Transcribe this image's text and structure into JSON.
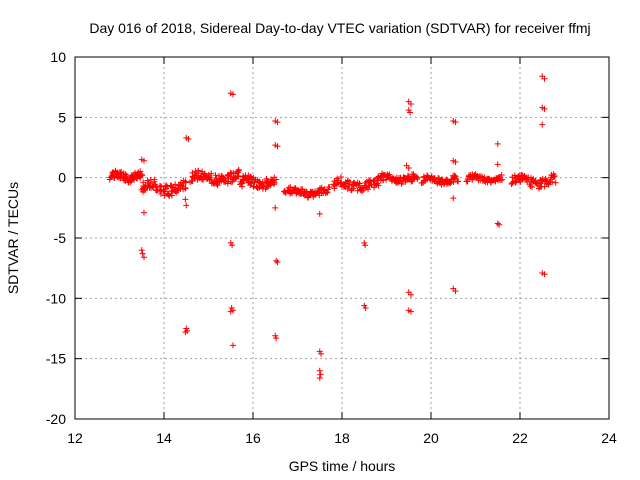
{
  "chart_data": {
    "type": "scatter",
    "title": "Day 016 of 2018, Sidereal Day-to-day VTEC variation (SDTVAR) for receiver ffmj",
    "xlabel": "GPS time / hours",
    "ylabel": "SDTVAR / TECUs",
    "xlim": [
      12,
      24
    ],
    "ylim": [
      -20,
      10
    ],
    "xticks": [
      12,
      14,
      16,
      18,
      20,
      22,
      24
    ],
    "yticks": [
      -20,
      -15,
      -10,
      -5,
      0,
      5,
      10
    ],
    "grid": true,
    "marker": "plus",
    "color": "#ff0000",
    "clusters": [
      {
        "x0": 12.8,
        "x1": 13.5,
        "y": 0.1,
        "spread": 0.45,
        "n": 70
      },
      {
        "x0": 13.5,
        "x1": 14.5,
        "y": -0.8,
        "spread": 0.7,
        "n": 80
      },
      {
        "x0": 14.6,
        "x1": 15.7,
        "y": 0.0,
        "spread": 0.6,
        "n": 90
      },
      {
        "x0": 15.7,
        "x1": 16.5,
        "y": -0.4,
        "spread": 0.6,
        "n": 70
      },
      {
        "x0": 16.7,
        "x1": 17.7,
        "y": -1.2,
        "spread": 0.45,
        "n": 80
      },
      {
        "x0": 17.8,
        "x1": 18.8,
        "y": -0.6,
        "spread": 0.6,
        "n": 70
      },
      {
        "x0": 18.8,
        "x1": 19.7,
        "y": -0.1,
        "spread": 0.45,
        "n": 70
      },
      {
        "x0": 19.8,
        "x1": 20.6,
        "y": -0.2,
        "spread": 0.4,
        "n": 60
      },
      {
        "x0": 20.8,
        "x1": 21.6,
        "y": -0.1,
        "spread": 0.35,
        "n": 60
      },
      {
        "x0": 21.8,
        "x1": 22.8,
        "y": -0.3,
        "spread": 0.55,
        "n": 80
      }
    ],
    "outliers": [
      [
        13.5,
        1.5
      ],
      [
        13.55,
        1.4
      ],
      [
        13.5,
        -6.0
      ],
      [
        13.52,
        -6.3
      ],
      [
        13.55,
        -6.6
      ],
      [
        13.55,
        -2.9
      ],
      [
        13.55,
        -1.0
      ],
      [
        14.5,
        3.3
      ],
      [
        14.55,
        3.2
      ],
      [
        14.5,
        -12.5
      ],
      [
        14.52,
        -12.7
      ],
      [
        14.48,
        -12.8
      ],
      [
        14.5,
        -2.3
      ],
      [
        14.48,
        -1.8
      ],
      [
        15.5,
        7.0
      ],
      [
        15.55,
        6.9
      ],
      [
        15.5,
        -5.4
      ],
      [
        15.53,
        -5.6
      ],
      [
        15.52,
        -10.8
      ],
      [
        15.5,
        -11.1
      ],
      [
        15.55,
        -11.0
      ],
      [
        15.55,
        -13.9
      ],
      [
        16.5,
        4.7
      ],
      [
        16.55,
        4.6
      ],
      [
        16.5,
        2.7
      ],
      [
        16.55,
        2.6
      ],
      [
        16.5,
        -2.5
      ],
      [
        16.52,
        -6.9
      ],
      [
        16.55,
        -7.0
      ],
      [
        16.5,
        -13.1
      ],
      [
        16.52,
        -13.3
      ],
      [
        17.5,
        -3.0
      ],
      [
        17.5,
        -14.4
      ],
      [
        17.53,
        -14.6
      ],
      [
        17.5,
        -16.0
      ],
      [
        17.52,
        -16.3
      ],
      [
        17.5,
        -16.6
      ],
      [
        18.5,
        -5.4
      ],
      [
        18.52,
        -5.6
      ],
      [
        18.5,
        -10.6
      ],
      [
        18.53,
        -10.8
      ],
      [
        19.45,
        1.0
      ],
      [
        19.5,
        6.3
      ],
      [
        19.55,
        6.1
      ],
      [
        19.5,
        5.6
      ],
      [
        19.53,
        5.4
      ],
      [
        19.5,
        0.8
      ],
      [
        19.5,
        -9.5
      ],
      [
        19.55,
        -9.7
      ],
      [
        19.5,
        -11.0
      ],
      [
        19.55,
        -11.1
      ],
      [
        20.5,
        4.7
      ],
      [
        20.55,
        4.6
      ],
      [
        20.5,
        1.4
      ],
      [
        20.55,
        1.3
      ],
      [
        20.5,
        -1.7
      ],
      [
        20.5,
        -9.2
      ],
      [
        20.55,
        -9.4
      ],
      [
        21.5,
        2.8
      ],
      [
        21.5,
        1.1
      ],
      [
        21.5,
        -3.8
      ],
      [
        21.53,
        -3.9
      ],
      [
        22.5,
        8.4
      ],
      [
        22.55,
        8.2
      ],
      [
        22.5,
        5.8
      ],
      [
        22.55,
        5.7
      ],
      [
        22.5,
        4.4
      ],
      [
        22.5,
        -7.9
      ],
      [
        22.55,
        -8.0
      ]
    ]
  }
}
